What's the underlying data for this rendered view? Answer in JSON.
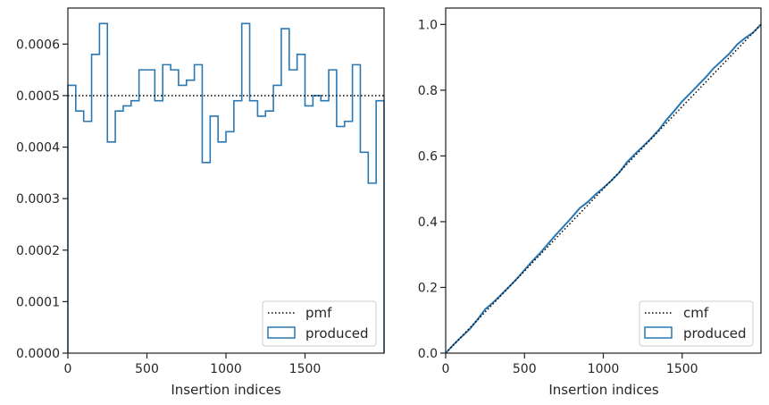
{
  "chart_data": [
    {
      "type": "step",
      "xlabel": "Insertion indices",
      "ylabel": "",
      "title": "",
      "xlim": [
        0,
        2000
      ],
      "ylim": [
        0,
        0.00067
      ],
      "xticks": [
        0,
        500,
        1000,
        1500
      ],
      "xtick_labels": [
        "0",
        "500",
        "1000",
        "1500"
      ],
      "yticks": [
        0,
        0.0001,
        0.0002,
        0.0003,
        0.0004,
        0.0005,
        0.0006
      ],
      "ytick_labels": [
        "0.0000",
        "0.0001",
        "0.0002",
        "0.0003",
        "0.0004",
        "0.0005",
        "0.0006"
      ],
      "grid": false,
      "legend_position": "lower-right",
      "reference": {
        "name": "pmf",
        "value": 0.0005,
        "style": "dotted",
        "color": "#000000"
      },
      "histogram": {
        "name": "produced",
        "color": "#2878b5",
        "bin_edges": [
          0,
          50,
          100,
          150,
          200,
          250,
          300,
          350,
          400,
          450,
          500,
          550,
          600,
          650,
          700,
          750,
          800,
          850,
          900,
          950,
          1000,
          1050,
          1100,
          1150,
          1200,
          1250,
          1300,
          1350,
          1400,
          1450,
          1500,
          1550,
          1600,
          1650,
          1700,
          1750,
          1800,
          1850,
          1900,
          1950,
          2000
        ],
        "values": [
          0.00052,
          0.00047,
          0.00045,
          0.00058,
          0.00064,
          0.00041,
          0.00047,
          0.00048,
          0.00049,
          0.00055,
          0.00055,
          0.00049,
          0.00056,
          0.00055,
          0.00052,
          0.00053,
          0.00056,
          0.00037,
          0.00046,
          0.00041,
          0.00043,
          0.00049,
          0.00064,
          0.00049,
          0.00046,
          0.00047,
          0.00052,
          0.00063,
          0.00055,
          0.00058,
          0.00048,
          0.0005,
          0.00049,
          0.00055,
          0.00044,
          0.00045,
          0.00056,
          0.00039,
          0.00033,
          0.00049
        ]
      }
    },
    {
      "type": "line",
      "xlabel": "Insertion indices",
      "ylabel": "",
      "title": "",
      "xlim": [
        0,
        2000
      ],
      "ylim": [
        0,
        1.05
      ],
      "xticks": [
        0,
        500,
        1000,
        1500
      ],
      "xtick_labels": [
        "0",
        "500",
        "1000",
        "1500"
      ],
      "yticks": [
        0,
        0.2,
        0.4,
        0.6,
        0.8,
        1.0
      ],
      "ytick_labels": [
        "0.0",
        "0.2",
        "0.4",
        "0.6",
        "0.8",
        "1.0"
      ],
      "grid": false,
      "legend_position": "lower-right",
      "reference": {
        "name": "cmf",
        "x": [
          0,
          2000
        ],
        "y": [
          0,
          1.0
        ],
        "style": "dotted",
        "color": "#000000"
      },
      "series": [
        {
          "name": "produced",
          "color": "#2878b5",
          "x": [
            0,
            50,
            100,
            150,
            200,
            250,
            300,
            350,
            400,
            450,
            500,
            550,
            600,
            650,
            700,
            750,
            800,
            850,
            900,
            950,
            1000,
            1050,
            1100,
            1150,
            1200,
            1250,
            1300,
            1350,
            1400,
            1450,
            1500,
            1550,
            1600,
            1650,
            1700,
            1750,
            1800,
            1850,
            1900,
            1950,
            2000
          ],
          "y": [
            0,
            0.026,
            0.0495,
            0.072,
            0.101,
            0.133,
            0.1535,
            0.177,
            0.201,
            0.2255,
            0.253,
            0.2805,
            0.305,
            0.333,
            0.3605,
            0.3865,
            0.413,
            0.441,
            0.4595,
            0.4825,
            0.503,
            0.5245,
            0.549,
            0.581,
            0.6055,
            0.6285,
            0.652,
            0.678,
            0.7095,
            0.737,
            0.766,
            0.79,
            0.815,
            0.8395,
            0.867,
            0.889,
            0.9115,
            0.9395,
            0.959,
            0.9755,
            1.0
          ]
        }
      ]
    }
  ]
}
